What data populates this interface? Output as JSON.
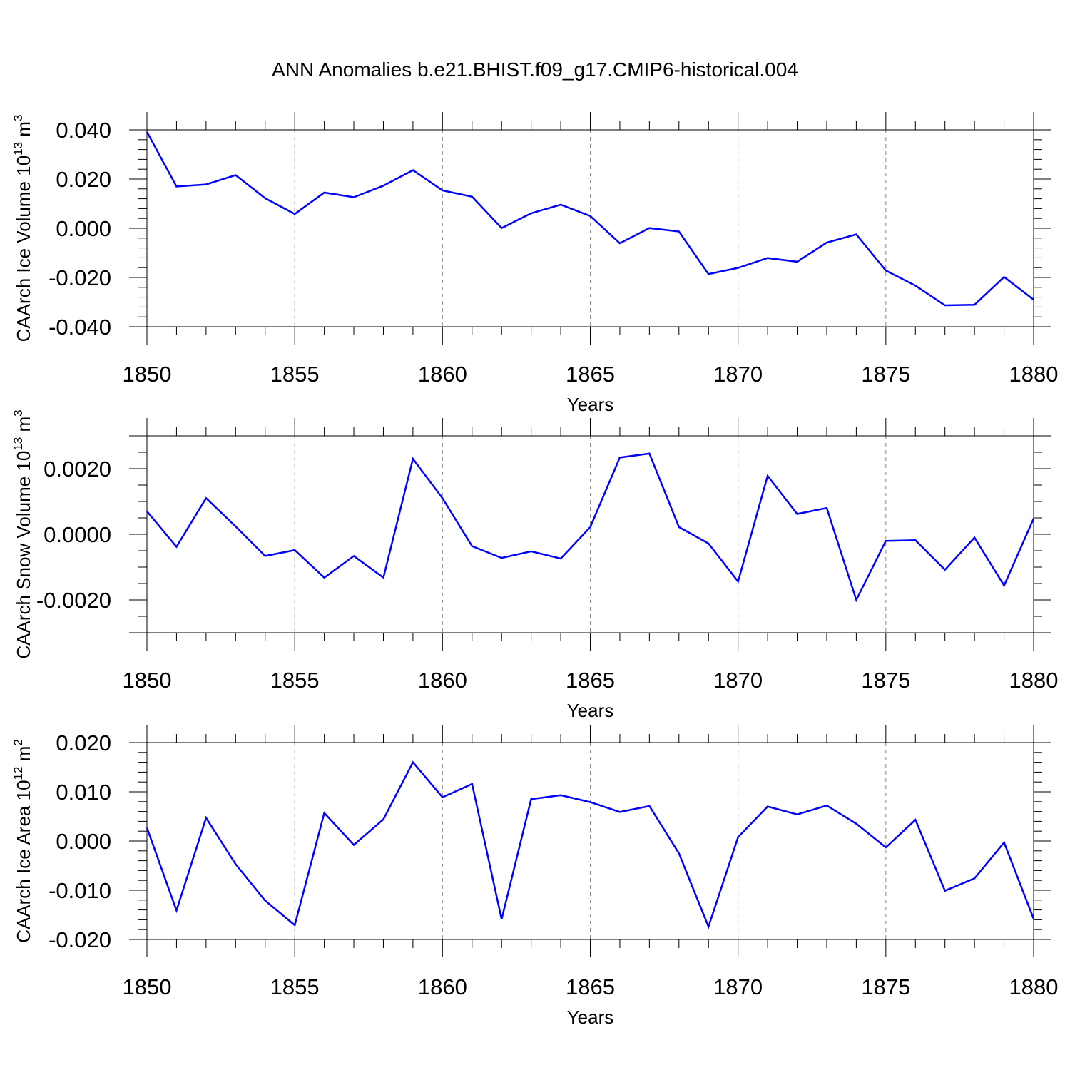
{
  "title": "ANN Anomalies b.e21.BHIST.f09_g17.CMIP6-historical.004",
  "colors": {
    "series": "#0000ff",
    "axis": "#000000",
    "grid": "#888888"
  },
  "chart_data": [
    {
      "type": "line",
      "ylabel_main": "CAArch Ice Volume 10",
      "ylabel_exp": "13",
      "ylabel_unit": "m",
      "ylabel_unit_exp": "3",
      "xlabel": "Years",
      "xlim": [
        1850,
        1880
      ],
      "ylim": [
        -0.04,
        0.04
      ],
      "x_ticks": [
        1850,
        1855,
        1860,
        1865,
        1870,
        1875,
        1880
      ],
      "x_tick_labels": [
        "1850",
        "1855",
        "1860",
        "1865",
        "1870",
        "1875",
        "1880"
      ],
      "y_ticks": [
        -0.04,
        -0.02,
        0.0,
        0.02,
        0.04
      ],
      "y_tick_labels": [
        "-0.040",
        "-0.020",
        "0.000",
        "0.020",
        "0.040"
      ],
      "y_minor_step": 0.004,
      "grid": "vertical-dashed",
      "x": [
        1850,
        1851,
        1852,
        1853,
        1854,
        1855,
        1856,
        1857,
        1858,
        1859,
        1860,
        1861,
        1862,
        1863,
        1864,
        1865,
        1866,
        1867,
        1868,
        1869,
        1870,
        1871,
        1872,
        1873,
        1874,
        1875,
        1876,
        1877,
        1878,
        1879,
        1880
      ],
      "values": [
        0.0392,
        0.017,
        0.0178,
        0.0216,
        0.0122,
        0.0058,
        0.0145,
        0.0126,
        0.0173,
        0.0236,
        0.0154,
        0.0128,
        0.0001,
        0.0061,
        0.0096,
        0.005,
        -0.0061,
        0.0001,
        -0.0013,
        -0.0186,
        -0.0161,
        -0.0121,
        -0.0136,
        -0.0058,
        -0.0025,
        -0.0172,
        -0.0233,
        -0.0313,
        -0.0311,
        -0.0198,
        -0.029
      ]
    },
    {
      "type": "line",
      "ylabel_main": "CAArch Snow Volume 10",
      "ylabel_exp": "13",
      "ylabel_unit": "m",
      "ylabel_unit_exp": "3",
      "xlabel": "Years",
      "xlim": [
        1850,
        1880
      ],
      "ylim": [
        -0.003,
        0.003
      ],
      "x_ticks": [
        1850,
        1855,
        1860,
        1865,
        1870,
        1875,
        1880
      ],
      "x_tick_labels": [
        "1850",
        "1855",
        "1860",
        "1865",
        "1870",
        "1875",
        "1880"
      ],
      "y_ticks": [
        -0.002,
        0.0,
        0.002
      ],
      "y_tick_labels": [
        "-0.0020",
        "0.0000",
        "0.0020"
      ],
      "y_minor_step": 0.0005,
      "grid": "vertical-dashed",
      "x": [
        1850,
        1851,
        1852,
        1853,
        1854,
        1855,
        1856,
        1857,
        1858,
        1859,
        1860,
        1861,
        1862,
        1863,
        1864,
        1865,
        1866,
        1867,
        1868,
        1869,
        1870,
        1871,
        1872,
        1873,
        1874,
        1875,
        1876,
        1877,
        1878,
        1879,
        1880
      ],
      "values": [
        0.0007,
        -0.00038,
        0.0011,
        0.00024,
        -0.00066,
        -0.00048,
        -0.00132,
        -0.00066,
        -0.00132,
        0.0023,
        0.0011,
        -0.00036,
        -0.00072,
        -0.00052,
        -0.00074,
        0.00022,
        0.00234,
        0.00246,
        0.00022,
        -0.00028,
        -0.00144,
        0.00178,
        0.00062,
        0.0008,
        -0.002,
        -0.0002,
        -0.00018,
        -0.00108,
        -0.0001,
        -0.00156,
        0.00048
      ]
    },
    {
      "type": "line",
      "ylabel_main": "CAArch Ice Area 10",
      "ylabel_exp": "12",
      "ylabel_unit": "m",
      "ylabel_unit_exp": "2",
      "xlabel": "Years",
      "xlim": [
        1850,
        1880
      ],
      "ylim": [
        -0.02,
        0.02
      ],
      "x_ticks": [
        1850,
        1855,
        1860,
        1865,
        1870,
        1875,
        1880
      ],
      "x_tick_labels": [
        "1850",
        "1855",
        "1860",
        "1865",
        "1870",
        "1875",
        "1880"
      ],
      "y_ticks": [
        -0.02,
        -0.01,
        0.0,
        0.01,
        0.02
      ],
      "y_tick_labels": [
        "-0.020",
        "-0.010",
        "0.000",
        "0.010",
        "0.020"
      ],
      "y_minor_step": 0.002,
      "grid": "vertical-dashed",
      "x": [
        1850,
        1851,
        1852,
        1853,
        1854,
        1855,
        1856,
        1857,
        1858,
        1859,
        1860,
        1861,
        1862,
        1863,
        1864,
        1865,
        1866,
        1867,
        1868,
        1869,
        1870,
        1871,
        1872,
        1873,
        1874,
        1875,
        1876,
        1877,
        1878,
        1879,
        1880
      ],
      "values": [
        0.0027,
        -0.0141,
        0.0047,
        -0.0047,
        -0.0121,
        -0.0171,
        0.0057,
        -0.0008,
        0.0044,
        0.016,
        0.0089,
        0.0116,
        -0.0159,
        0.0085,
        0.0093,
        0.0079,
        0.0059,
        0.0071,
        -0.0025,
        -0.0174,
        0.0008,
        0.007,
        0.0054,
        0.0072,
        0.0035,
        -0.0013,
        0.0043,
        -0.0101,
        -0.0076,
        -0.0003,
        -0.0158
      ]
    }
  ]
}
